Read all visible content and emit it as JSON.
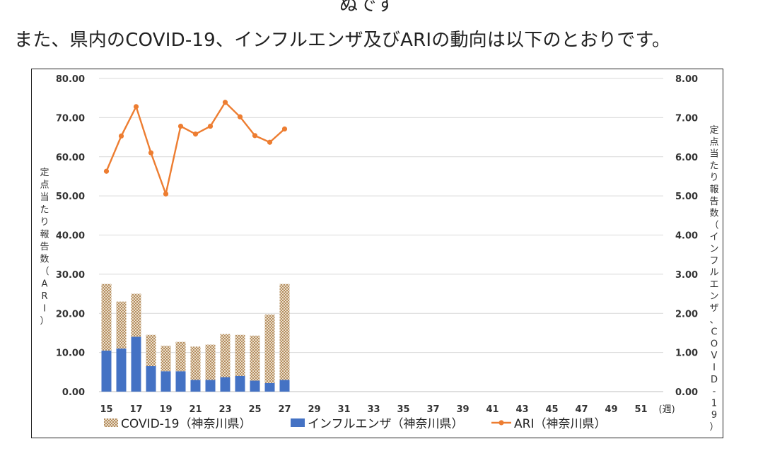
{
  "top_fragment": "ぬです",
  "heading": "また、県内のCOVID-19、インフルエンザ及びARIの動向は以下のとおりです。",
  "chart_data": {
    "type": "bar+line",
    "weeks": [
      15,
      16,
      17,
      18,
      19,
      20,
      21,
      22,
      23,
      24,
      25,
      26,
      27
    ],
    "x_ticks": [
      "15",
      "17",
      "19",
      "21",
      "23",
      "25",
      "27",
      "29",
      "31",
      "33",
      "35",
      "37",
      "39",
      "41",
      "43",
      "45",
      "47",
      "49",
      "51"
    ],
    "x_unit": "(週)",
    "x_range": [
      15,
      52
    ],
    "left_axis": {
      "label": "定点当たり報告数（ARI）",
      "range": [
        0,
        80
      ],
      "ticks": [
        "0.00",
        "10.00",
        "20.00",
        "30.00",
        "40.00",
        "50.00",
        "60.00",
        "70.00",
        "80.00"
      ]
    },
    "right_axis": {
      "label": "定点当たり報告数（インフルエンザ、COVID-19）",
      "range": [
        0,
        8
      ],
      "ticks": [
        "0.00",
        "1.00",
        "2.00",
        "3.00",
        "4.00",
        "5.00",
        "6.00",
        "7.00",
        "8.00"
      ]
    },
    "series": [
      {
        "name": "COVID-19（神奈川県）",
        "type": "bar",
        "stacked": true,
        "axis": "right",
        "color": "#d4b896",
        "values": [
          1.7,
          1.2,
          1.1,
          0.8,
          0.65,
          0.75,
          0.85,
          0.9,
          1.1,
          1.05,
          1.15,
          1.75,
          2.45
        ]
      },
      {
        "name": "インフルエンザ（神奈川県）",
        "type": "bar",
        "stacked": true,
        "axis": "right",
        "color": "#4472c4",
        "values": [
          1.05,
          1.1,
          1.4,
          0.65,
          0.52,
          0.52,
          0.3,
          0.3,
          0.37,
          0.4,
          0.28,
          0.22,
          0.3
        ]
      },
      {
        "name": "ARI（神奈川県）",
        "type": "line",
        "axis": "left",
        "color": "#ed7d31",
        "values": [
          56.3,
          65.3,
          72.8,
          61.0,
          50.5,
          67.8,
          65.8,
          67.8,
          73.9,
          70.2,
          65.4,
          63.7,
          67.1
        ]
      }
    ],
    "legend_position": "bottom",
    "grid": true
  }
}
